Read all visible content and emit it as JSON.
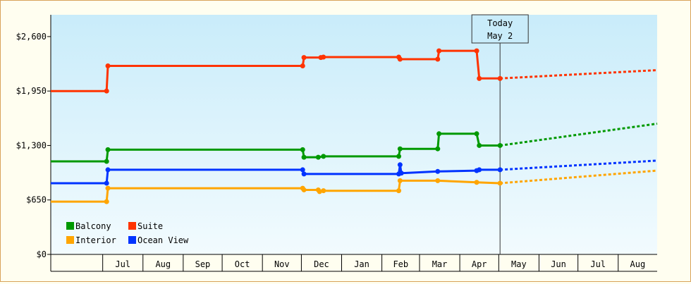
{
  "chart_data": {
    "type": "line",
    "title": "",
    "xlabel": "",
    "ylabel": "",
    "ylim": [
      0,
      2860
    ],
    "y_ticks": [
      0,
      650,
      1300,
      1950,
      2600
    ],
    "y_tick_labels": [
      "$0",
      "$650",
      "$1,300",
      "$1,950",
      "$2,600"
    ],
    "x_range": [
      "2019-05-22",
      "2020-08-31"
    ],
    "months": [
      {
        "label": "Jul",
        "start": "2019-07-01",
        "end": "2019-08-01"
      },
      {
        "label": "Aug",
        "start": "2019-08-01",
        "end": "2019-09-01"
      },
      {
        "label": "Sep",
        "start": "2019-09-01",
        "end": "2019-10-01"
      },
      {
        "label": "Oct",
        "start": "2019-10-01",
        "end": "2019-11-01"
      },
      {
        "label": "Nov",
        "start": "2019-11-01",
        "end": "2019-12-01"
      },
      {
        "label": "Dec",
        "start": "2019-12-01",
        "end": "2020-01-01"
      },
      {
        "label": "Jan",
        "start": "2020-01-01",
        "end": "2020-02-01"
      },
      {
        "label": "Feb",
        "start": "2020-02-01",
        "end": "2020-03-01"
      },
      {
        "label": "Mar",
        "start": "2020-03-01",
        "end": "2020-04-01"
      },
      {
        "label": "Apr",
        "start": "2020-04-01",
        "end": "2020-05-01"
      },
      {
        "label": "May",
        "start": "2020-05-01",
        "end": "2020-06-01"
      },
      {
        "label": "Jun",
        "start": "2020-06-01",
        "end": "2020-07-01"
      },
      {
        "label": "Jul",
        "start": "2020-07-01",
        "end": "2020-08-01"
      },
      {
        "label": "Aug",
        "start": "2020-08-01",
        "end": "2020-08-31"
      }
    ],
    "today": {
      "date": "2020-05-02",
      "label_line1": "Today",
      "label_line2": "May 2"
    },
    "grid": false,
    "legend_position": "bottom-left",
    "series": [
      {
        "name": "Suite",
        "color": "#ff3300",
        "points": [
          {
            "x": "2019-05-22",
            "y": 1950
          },
          {
            "x": "2019-07-04",
            "y": 1950
          },
          {
            "x": "2019-07-05",
            "y": 2250
          },
          {
            "x": "2019-12-02",
            "y": 2250
          },
          {
            "x": "2019-12-03",
            "y": 2350
          },
          {
            "x": "2019-12-16",
            "y": 2350
          },
          {
            "x": "2019-12-18",
            "y": 2355
          },
          {
            "x": "2020-02-14",
            "y": 2355
          },
          {
            "x": "2020-02-15",
            "y": 2330
          },
          {
            "x": "2020-03-15",
            "y": 2330
          },
          {
            "x": "2020-03-16",
            "y": 2430
          },
          {
            "x": "2020-04-14",
            "y": 2430
          },
          {
            "x": "2020-04-16",
            "y": 2100
          },
          {
            "x": "2020-05-02",
            "y": 2100
          }
        ],
        "forecast": [
          {
            "x": "2020-05-02",
            "y": 2100
          },
          {
            "x": "2020-08-31",
            "y": 2200
          }
        ]
      },
      {
        "name": "Balcony",
        "color": "#009900",
        "points": [
          {
            "x": "2019-05-22",
            "y": 1110
          },
          {
            "x": "2019-07-04",
            "y": 1110
          },
          {
            "x": "2019-07-05",
            "y": 1250
          },
          {
            "x": "2019-12-02",
            "y": 1250
          },
          {
            "x": "2019-12-03",
            "y": 1160
          },
          {
            "x": "2019-12-14",
            "y": 1160
          },
          {
            "x": "2019-12-18",
            "y": 1170
          },
          {
            "x": "2020-02-14",
            "y": 1170
          },
          {
            "x": "2020-02-15",
            "y": 1260
          },
          {
            "x": "2020-03-15",
            "y": 1260
          },
          {
            "x": "2020-03-16",
            "y": 1440
          },
          {
            "x": "2020-04-14",
            "y": 1440
          },
          {
            "x": "2020-04-16",
            "y": 1300
          },
          {
            "x": "2020-05-02",
            "y": 1300
          }
        ],
        "forecast": [
          {
            "x": "2020-05-02",
            "y": 1300
          },
          {
            "x": "2020-08-31",
            "y": 1560
          }
        ]
      },
      {
        "name": "Ocean View",
        "color": "#0033ff",
        "points": [
          {
            "x": "2019-05-22",
            "y": 850
          },
          {
            "x": "2019-07-04",
            "y": 850
          },
          {
            "x": "2019-07-05",
            "y": 1010
          },
          {
            "x": "2019-12-02",
            "y": 1010
          },
          {
            "x": "2019-12-03",
            "y": 960
          },
          {
            "x": "2020-02-14",
            "y": 960
          },
          {
            "x": "2020-02-15",
            "y": 1070
          },
          {
            "x": "2020-02-16",
            "y": 970
          },
          {
            "x": "2020-03-15",
            "y": 990
          },
          {
            "x": "2020-04-14",
            "y": 1000
          },
          {
            "x": "2020-04-16",
            "y": 1010
          },
          {
            "x": "2020-05-02",
            "y": 1010
          }
        ],
        "forecast": [
          {
            "x": "2020-05-02",
            "y": 1010
          },
          {
            "x": "2020-08-31",
            "y": 1120
          }
        ]
      },
      {
        "name": "Interior",
        "color": "#ffa500",
        "points": [
          {
            "x": "2019-05-22",
            "y": 630
          },
          {
            "x": "2019-07-04",
            "y": 630
          },
          {
            "x": "2019-07-05",
            "y": 790
          },
          {
            "x": "2019-12-02",
            "y": 790
          },
          {
            "x": "2019-12-03",
            "y": 770
          },
          {
            "x": "2019-12-14",
            "y": 770
          },
          {
            "x": "2019-12-15",
            "y": 750
          },
          {
            "x": "2019-12-18",
            "y": 760
          },
          {
            "x": "2020-02-14",
            "y": 760
          },
          {
            "x": "2020-02-15",
            "y": 880
          },
          {
            "x": "2020-03-15",
            "y": 880
          },
          {
            "x": "2020-04-14",
            "y": 860
          },
          {
            "x": "2020-05-02",
            "y": 850
          }
        ],
        "forecast": [
          {
            "x": "2020-05-02",
            "y": 850
          },
          {
            "x": "2020-08-31",
            "y": 1000
          }
        ]
      }
    ],
    "legend": [
      {
        "name": "Balcony",
        "color": "#009900"
      },
      {
        "name": "Suite",
        "color": "#ff3300"
      },
      {
        "name": "Interior",
        "color": "#ffa500"
      },
      {
        "name": "Ocean View",
        "color": "#0033ff"
      }
    ]
  }
}
